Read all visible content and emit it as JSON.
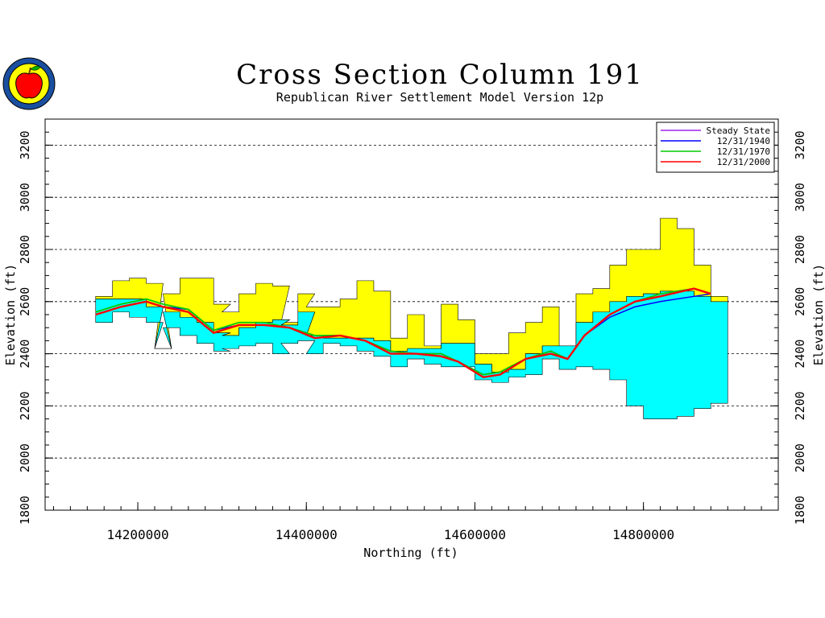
{
  "chart_data": {
    "type": "area",
    "title": "Cross Section Column 191",
    "subtitle": "Republican River Settlement Model Version 12p",
    "xlabel": "Northing (ft)",
    "ylabel": "Elevation (ft)",
    "xlim": [
      14090000,
      14960000
    ],
    "ylim": [
      1800,
      3300
    ],
    "x_ticks": [
      14200000,
      14400000,
      14600000,
      14800000
    ],
    "y_ticks": [
      1800,
      2000,
      2200,
      2400,
      2600,
      2800,
      3000,
      3200
    ],
    "grid": "y-dashed",
    "legend_position": "top-right",
    "colors": {
      "upper_layer": "#ffff00",
      "lower_layer": "#00ffff",
      "steady_state": "#a020f0",
      "y1940": "#0000ff",
      "y1970": "#00cc00",
      "y2000": "#ff0000"
    },
    "layers": {
      "x": [
        14150000,
        14170000,
        14190000,
        14210000,
        14220000,
        14230000,
        14250000,
        14270000,
        14290000,
        14300000,
        14320000,
        14340000,
        14360000,
        14370000,
        14390000,
        14400000,
        14420000,
        14440000,
        14460000,
        14480000,
        14500000,
        14520000,
        14540000,
        14560000,
        14580000,
        14600000,
        14620000,
        14640000,
        14660000,
        14680000,
        14700000,
        14720000,
        14740000,
        14760000,
        14780000,
        14800000,
        14820000,
        14840000,
        14860000,
        14880000
      ],
      "upper_top": [
        2620,
        2680,
        2690,
        2670,
        2420,
        2630,
        2690,
        2690,
        2590,
        2560,
        2630,
        2670,
        2660,
        2520,
        2630,
        2580,
        2580,
        2610,
        2680,
        2640,
        2460,
        2550,
        2430,
        2590,
        2530,
        2400,
        2400,
        2480,
        2520,
        2580,
        2430,
        2630,
        2650,
        2740,
        2800,
        2800,
        2920,
        2880,
        2740,
        2620
      ],
      "boundary": [
        2610,
        2610,
        2610,
        2580,
        2420,
        2560,
        2540,
        2520,
        2480,
        2470,
        2500,
        2520,
        2530,
        2510,
        2560,
        2470,
        2460,
        2460,
        2460,
        2450,
        2410,
        2420,
        2420,
        2440,
        2440,
        2360,
        2330,
        2340,
        2400,
        2430,
        2430,
        2520,
        2560,
        2600,
        2620,
        2630,
        2640,
        2640,
        2620,
        2600
      ],
      "bottom": [
        2520,
        2560,
        2540,
        2520,
        2420,
        2500,
        2470,
        2440,
        2410,
        2420,
        2430,
        2440,
        2400,
        2440,
        2450,
        2400,
        2440,
        2430,
        2410,
        2390,
        2350,
        2380,
        2360,
        2350,
        2350,
        2300,
        2290,
        2310,
        2320,
        2380,
        2340,
        2350,
        2340,
        2300,
        2200,
        2150,
        2150,
        2160,
        2190,
        2210
      ]
    },
    "series": [
      {
        "name": "Steady State",
        "x": [
          14150000,
          14180000,
          14210000,
          14230000,
          14260000,
          14290000,
          14320000,
          14350000,
          14380000,
          14410000,
          14440000,
          14470000,
          14500000,
          14530000,
          14560000,
          14580000,
          14610000,
          14630000,
          14660000,
          14690000,
          14710000,
          14730000,
          14760000,
          14790000,
          14820000,
          14860000,
          14880000
        ],
        "values": [
          2550,
          2580,
          2600,
          2580,
          2570,
          2490,
          2510,
          2510,
          2500,
          2470,
          2470,
          2450,
          2410,
          2400,
          2400,
          2370,
          2320,
          2330,
          2380,
          2410,
          2380,
          2470,
          2550,
          2600,
          2620,
          2650,
          2630
        ]
      },
      {
        "name": "12/31/1940",
        "x": [
          14150000,
          14180000,
          14210000,
          14230000,
          14260000,
          14290000,
          14320000,
          14350000,
          14380000,
          14410000,
          14440000,
          14470000,
          14500000,
          14530000,
          14560000,
          14580000,
          14610000,
          14630000,
          14660000,
          14690000,
          14710000,
          14730000,
          14760000,
          14790000,
          14820000,
          14860000,
          14880000
        ],
        "values": [
          2550,
          2580,
          2600,
          2580,
          2570,
          2490,
          2510,
          2510,
          2500,
          2470,
          2470,
          2450,
          2410,
          2400,
          2400,
          2370,
          2320,
          2330,
          2380,
          2410,
          2380,
          2470,
          2540,
          2580,
          2600,
          2620,
          2630
        ]
      },
      {
        "name": "12/31/1970",
        "x": [
          14150000,
          14180000,
          14210000,
          14230000,
          14260000,
          14290000,
          14320000,
          14350000,
          14380000,
          14410000,
          14440000,
          14470000,
          14500000,
          14530000,
          14560000,
          14580000,
          14610000,
          14630000,
          14660000,
          14690000,
          14710000,
          14730000,
          14760000,
          14790000,
          14820000,
          14860000,
          14880000
        ],
        "values": [
          2560,
          2590,
          2610,
          2590,
          2570,
          2490,
          2520,
          2520,
          2500,
          2470,
          2470,
          2450,
          2410,
          2400,
          2400,
          2370,
          2320,
          2330,
          2380,
          2410,
          2380,
          2470,
          2550,
          2600,
          2630,
          2650,
          2630
        ]
      },
      {
        "name": "12/31/2000",
        "x": [
          14150000,
          14180000,
          14210000,
          14230000,
          14260000,
          14290000,
          14320000,
          14350000,
          14380000,
          14410000,
          14440000,
          14470000,
          14500000,
          14530000,
          14560000,
          14580000,
          14610000,
          14630000,
          14660000,
          14690000,
          14710000,
          14730000,
          14760000,
          14790000,
          14820000,
          14860000,
          14880000
        ],
        "values": [
          2550,
          2580,
          2600,
          2580,
          2560,
          2480,
          2510,
          2510,
          2500,
          2460,
          2470,
          2450,
          2400,
          2400,
          2390,
          2370,
          2310,
          2320,
          2380,
          2400,
          2380,
          2470,
          2550,
          2600,
          2620,
          2650,
          2630
        ]
      }
    ]
  }
}
